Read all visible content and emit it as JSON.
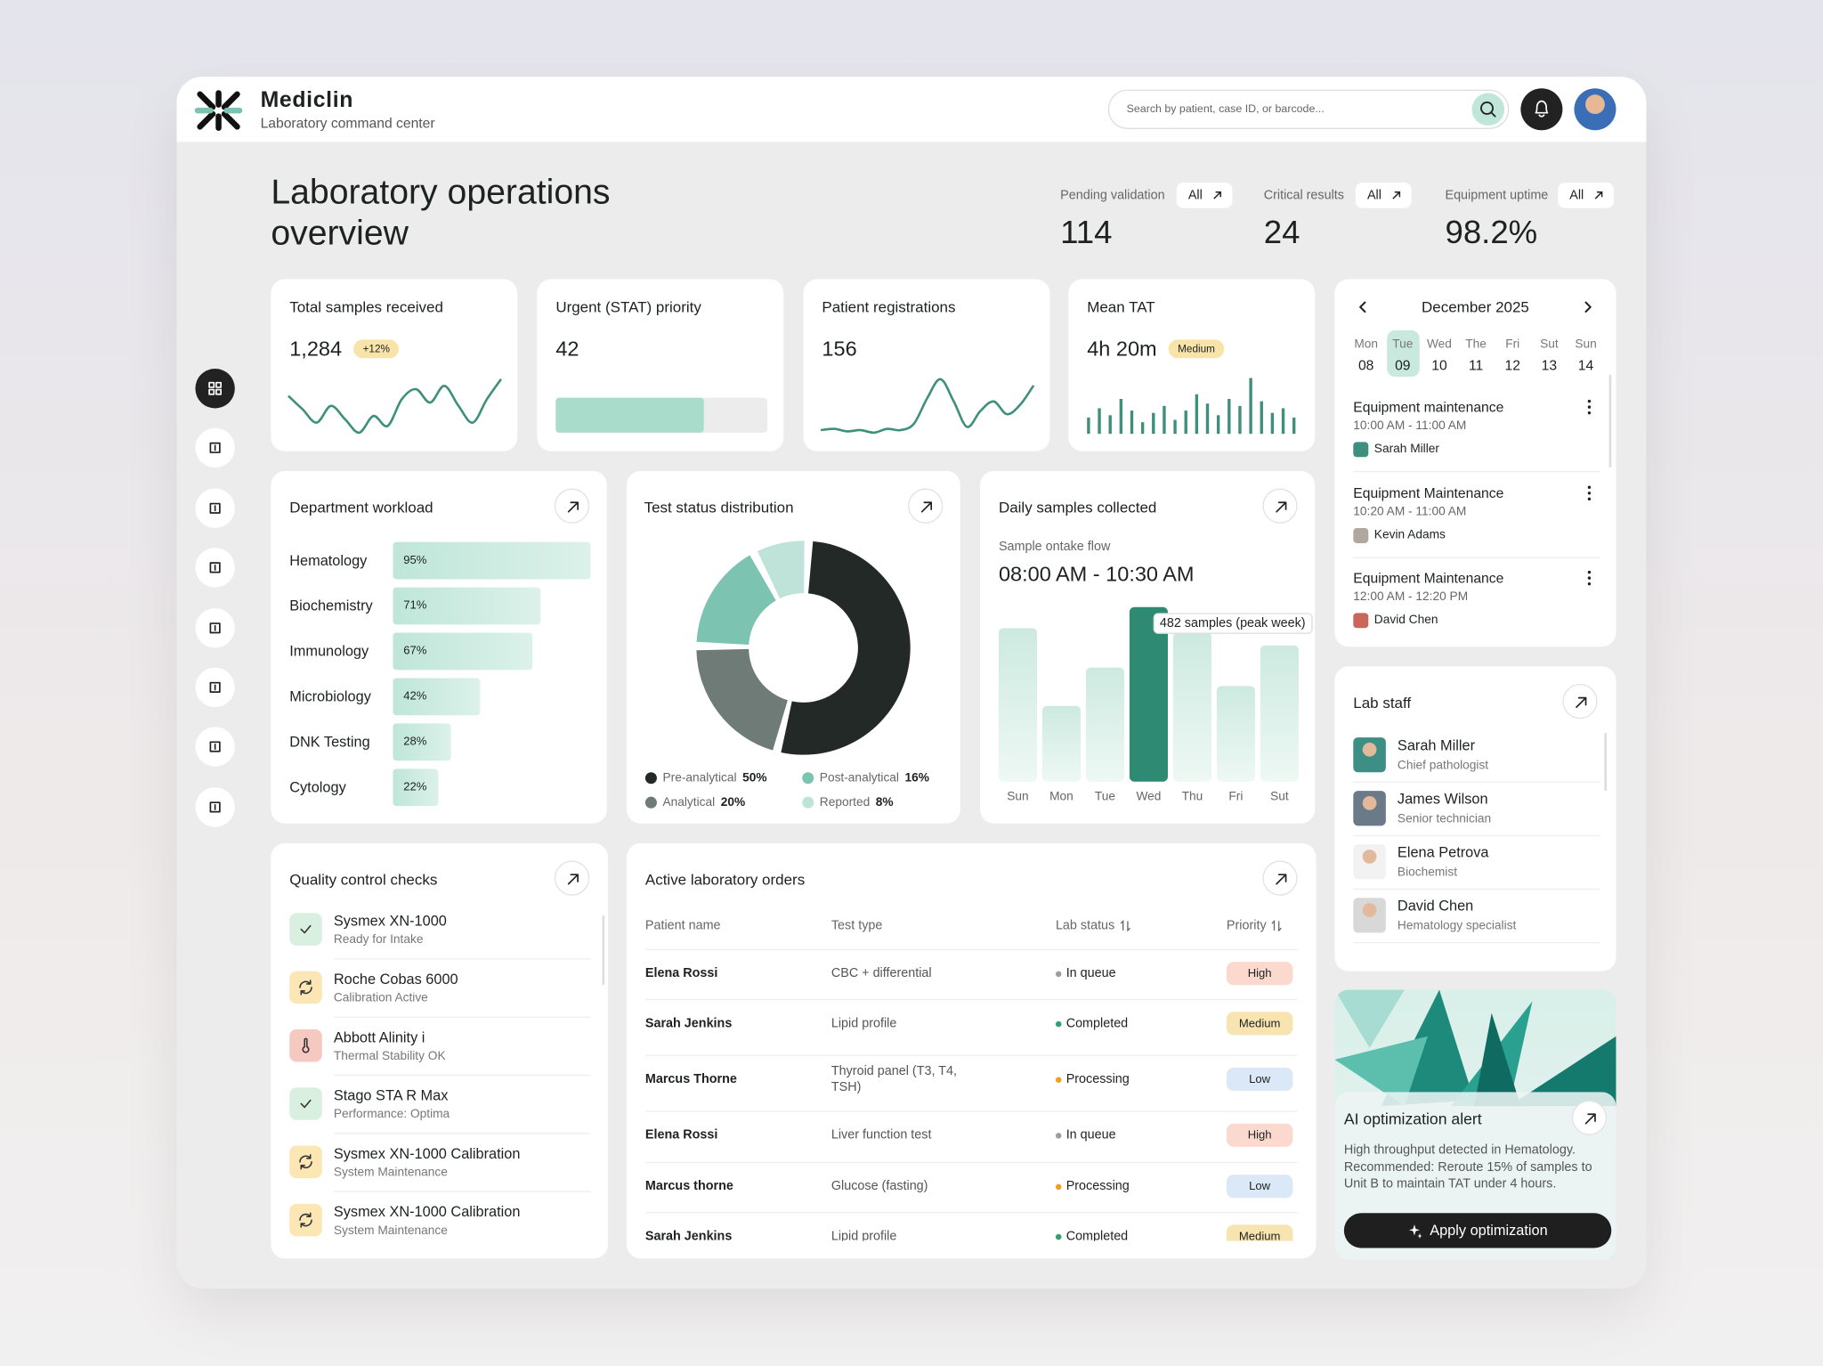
{
  "app": {
    "name": "Mediclin",
    "tagline": "Laboratory command center",
    "search_placeholder": "Search by patient, case ID, or barcode..."
  },
  "overview": {
    "title": "Laboratory operations overview",
    "kpis": [
      {
        "label": "Pending validation",
        "filter": "All",
        "value": "114"
      },
      {
        "label": "Critical results",
        "filter": "All",
        "value": "24"
      },
      {
        "label": "Equipment uptime",
        "filter": "All",
        "value": "98.2%"
      }
    ]
  },
  "stat_cards": [
    {
      "title": "Total samples received",
      "value": "1,284",
      "badge": "+12%",
      "chart": {
        "type": "line",
        "values": [
          60,
          40,
          20,
          45,
          25,
          5,
          30,
          15,
          55,
          70,
          50,
          75,
          45,
          20,
          55,
          85
        ],
        "color": "#3f8f7d"
      }
    },
    {
      "title": "Urgent (STAT) priority",
      "value": "42",
      "chart": {
        "type": "progress",
        "values": [
          70
        ],
        "color": "#a9dccb"
      }
    },
    {
      "title": "Patient registrations",
      "value": "156",
      "chart": {
        "type": "line",
        "values": [
          10,
          12,
          8,
          10,
          6,
          12,
          10,
          20,
          60,
          90,
          55,
          15,
          40,
          55,
          35,
          50,
          80
        ],
        "color": "#3f8f7d"
      }
    },
    {
      "title": "Mean TAT",
      "value": "4h 20m",
      "badge": "Medium",
      "chart": {
        "type": "bar",
        "values": [
          14,
          22,
          16,
          30,
          20,
          10,
          18,
          24,
          12,
          20,
          34,
          26,
          16,
          30,
          24,
          48,
          28,
          18,
          22,
          14
        ],
        "color": "#3f8f7d"
      }
    }
  ],
  "department_workload": {
    "title": "Department workload",
    "chart_data": {
      "type": "bar",
      "orientation": "horizontal",
      "categories": [
        "Hematology",
        "Biochemistry",
        "Immunology",
        "Microbiology",
        "DNK Testing",
        "Cytology"
      ],
      "values": [
        95,
        71,
        67,
        42,
        28,
        22
      ],
      "value_labels": [
        "95%",
        "71%",
        "67%",
        "42%",
        "28%",
        "22%"
      ],
      "xlim": [
        0,
        100
      ],
      "color": "#bfe6d9"
    }
  },
  "test_status": {
    "title": "Test status distribution",
    "chart_data": {
      "type": "pie",
      "donut": true,
      "categories": [
        "Pre-analytical",
        "Analytical",
        "Post-analytical",
        "Reported"
      ],
      "values": [
        50,
        20,
        16,
        8
      ],
      "value_labels": [
        "50%",
        "20%",
        "16%",
        "8%"
      ],
      "colors": [
        "#232927",
        "#6f7b77",
        "#7cc3b1",
        "#bfe3d8"
      ]
    }
  },
  "daily_samples": {
    "title": "Daily samples collected",
    "subtitle": "Sample ontake flow",
    "time_range": "08:00 AM - 10:30 AM",
    "chart_data": {
      "type": "bar",
      "categories": [
        "Sun",
        "Mon",
        "Tue",
        "Wed",
        "Thu",
        "Fri",
        "Sut"
      ],
      "values": [
        424,
        209,
        315,
        482,
        411,
        264,
        376
      ],
      "highlight": 3,
      "annotation": "482 samples (peak week)",
      "color": "#cdeae0",
      "highlight_color": "#2f8a74"
    }
  },
  "calendar": {
    "month": "December 2025",
    "selected": 1,
    "days": [
      {
        "weekday": "Mon",
        "date": "08"
      },
      {
        "weekday": "Tue",
        "date": "09"
      },
      {
        "weekday": "Wed",
        "date": "10"
      },
      {
        "weekday": "The",
        "date": "11"
      },
      {
        "weekday": "Fri",
        "date": "12"
      },
      {
        "weekday": "Sut",
        "date": "13"
      },
      {
        "weekday": "Sun",
        "date": "14"
      }
    ],
    "events": [
      {
        "title": "Equipment maintenance",
        "time": "10:00 AM - 11:00 AM",
        "person": "Sarah Miller"
      },
      {
        "title": "Equipment Maintenance",
        "time": "10:20 AM - 11:00 AM",
        "person": "Kevin Adams"
      },
      {
        "title": "Equipment Maintenance",
        "time": "12:00 AM - 12:20 PM",
        "person": "David Chen"
      }
    ]
  },
  "lab_staff": {
    "title": "Lab staff",
    "members": [
      {
        "name": "Sarah Miller",
        "role": "Chief pathologist"
      },
      {
        "name": "James Wilson",
        "role": "Senior technician"
      },
      {
        "name": "Elena Petrova",
        "role": "Biochemist"
      },
      {
        "name": "David Chen",
        "role": "Hematology specialist"
      }
    ]
  },
  "ai_alert": {
    "title": "AI optimization alert",
    "message": "High throughput detected in Hematology. Recommended: Reroute 15% of samples to Unit B to maintain TAT under 4 hours.",
    "action": "Apply optimization"
  },
  "quality_checks": {
    "title": "Quality control checks",
    "items": [
      {
        "name": "Sysmex XN-1000",
        "status": "Ready for Intake",
        "icon": "check"
      },
      {
        "name": "Roche Cobas 6000",
        "status": "Calibration Active",
        "icon": "sync"
      },
      {
        "name": "Abbott Alinity i",
        "status": "Thermal Stability OK",
        "icon": "thermo"
      },
      {
        "name": "Stago STA R Max",
        "status": "Performance: Optima",
        "icon": "check"
      },
      {
        "name": "Sysmex XN-1000 Calibration",
        "status": "System Maintenance",
        "icon": "sync"
      },
      {
        "name": "Sysmex XN-1000 Calibration",
        "status": "System Maintenance",
        "icon": "sync"
      }
    ]
  },
  "orders": {
    "title": "Active laboratory orders",
    "columns": [
      "Patient name",
      "Test type",
      "Lab status",
      "Priority"
    ],
    "rows": [
      {
        "patient": "Elena Rossi",
        "test": "CBC + differential",
        "status": "In queue",
        "priority": "High",
        "status_color": "#9aa09e",
        "priority_color": "#fbd9cf"
      },
      {
        "patient": "Sarah Jenkins",
        "test": "Lipid profile",
        "status": "Completed",
        "priority": "Medium",
        "status_color": "#2fa36b",
        "priority_color": "#f8e4b0"
      },
      {
        "patient": "Marcus Thorne",
        "test": "Thyroid panel (T3, T4, TSH)",
        "status": "Processing",
        "priority": "Low",
        "status_color": "#f0a020",
        "priority_color": "#dbe8f8"
      },
      {
        "patient": "Elena Rossi",
        "test": "Liver function test",
        "status": "In queue",
        "priority": "High",
        "status_color": "#9aa09e",
        "priority_color": "#fbd9cf"
      },
      {
        "patient": "Marcus thorne",
        "test": "Glucose (fasting)",
        "status": "Processing",
        "priority": "Low",
        "status_color": "#f0a020",
        "priority_color": "#dbe8f8"
      },
      {
        "patient": "Sarah Jenkins",
        "test": "Lipid profile",
        "status": "Completed",
        "priority": "Medium",
        "status_color": "#2fa36b",
        "priority_color": "#f8e4b0"
      }
    ]
  }
}
